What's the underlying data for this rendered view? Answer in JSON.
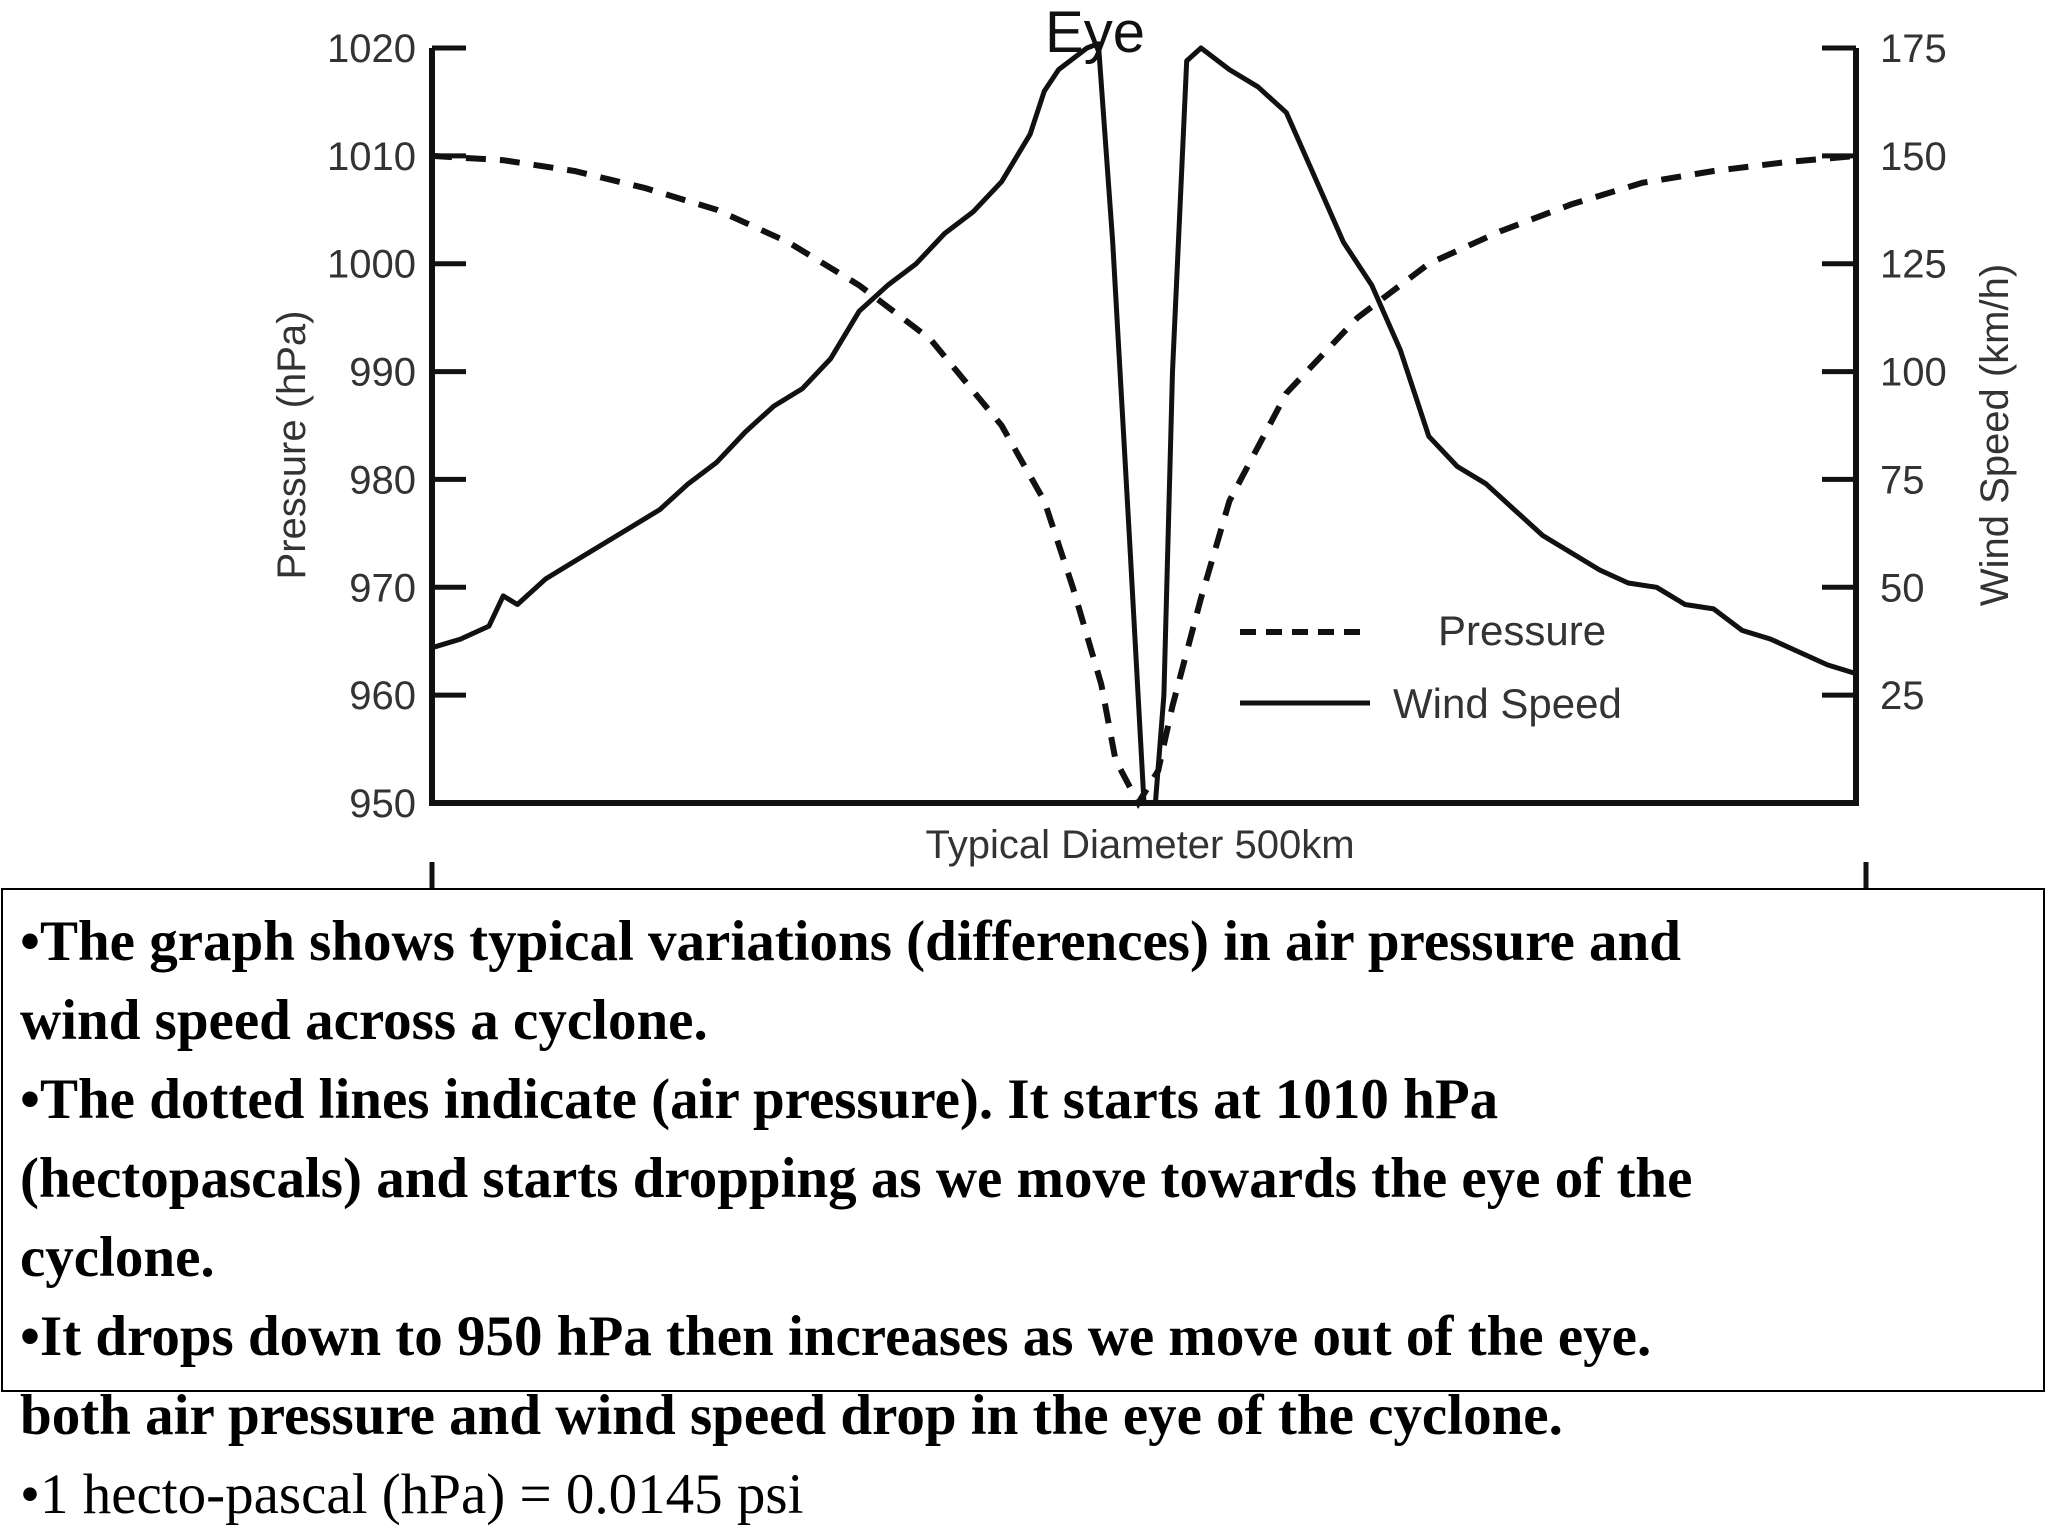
{
  "chart_data": {
    "type": "line",
    "title": "Eye",
    "xlabel": "Typical Diameter 500km",
    "ylabel": "Pressure (hPa)",
    "y2label": "Wind Speed (km/h)",
    "ylim": [
      950,
      1020
    ],
    "y2lim": [
      0,
      175
    ],
    "xlim": [
      0,
      500
    ],
    "yticks": [
      "1020",
      "1010",
      "1000",
      "990",
      "980",
      "970",
      "960",
      "950"
    ],
    "y2ticks": [
      "175",
      "150",
      "125",
      "100",
      "75",
      "50",
      "25"
    ],
    "legend": [
      "Pressure",
      "Wind Speed"
    ],
    "series": [
      {
        "name": "Pressure",
        "axis": "left",
        "style": "dashed",
        "x": [
          0,
          25,
          50,
          75,
          100,
          125,
          150,
          175,
          200,
          215,
          225,
          235,
          240,
          248,
          255,
          260,
          270,
          280,
          300,
          325,
          350,
          375,
          400,
          425,
          450,
          475,
          500
        ],
        "y": [
          1010,
          1009.6,
          1008.6,
          1007,
          1005,
          1002,
          998,
          993,
          985,
          978,
          970,
          961,
          954,
          950,
          953,
          959,
          969,
          978,
          988,
          995,
          1000,
          1003,
          1005.5,
          1007.5,
          1008.6,
          1009.4,
          1010
        ]
      },
      {
        "name": "Wind Speed",
        "axis": "right",
        "style": "solid",
        "x": [
          0,
          10,
          20,
          25,
          30,
          40,
          50,
          60,
          70,
          80,
          90,
          100,
          110,
          120,
          130,
          140,
          150,
          160,
          170,
          180,
          190,
          200,
          210,
          215,
          220,
          230,
          234,
          239,
          245,
          250,
          254,
          257,
          260,
          265,
          270,
          280,
          290,
          300,
          310,
          320,
          330,
          340,
          350,
          360,
          370,
          380,
          390,
          400,
          410,
          420,
          430,
          440,
          450,
          460,
          470,
          480,
          490,
          500
        ],
        "y": [
          36,
          38,
          41,
          48,
          46,
          52,
          56,
          60,
          64,
          68,
          74,
          79,
          86,
          92,
          96,
          103,
          114,
          120,
          125,
          132,
          137,
          144,
          155,
          165,
          170,
          175,
          176,
          130,
          60,
          0,
          0,
          25,
          100,
          172,
          175,
          170,
          166,
          160,
          145,
          130,
          120,
          105,
          85,
          78,
          74,
          68,
          62,
          58,
          54,
          51,
          50,
          46,
          45,
          40,
          38,
          35,
          32,
          30
        ]
      }
    ]
  },
  "notes": {
    "line1": "•The graph shows typical variations (differences) in air pressure and",
    "line2": "wind speed across a cyclone.",
    "line3": "•The dotted lines indicate (air pressure). It starts at 1010 hPa",
    "line4": "(hectopascals) and starts dropping as we move towards the eye of the",
    "line5": "cyclone.",
    "line6": "•It drops down to 950 hPa then increases as we move out of the eye.",
    "line7": "both air pressure and wind speed drop in the eye of the cyclone.",
    "line8": "•1 hecto-pascal (hPa) = 0.0145 psi"
  }
}
